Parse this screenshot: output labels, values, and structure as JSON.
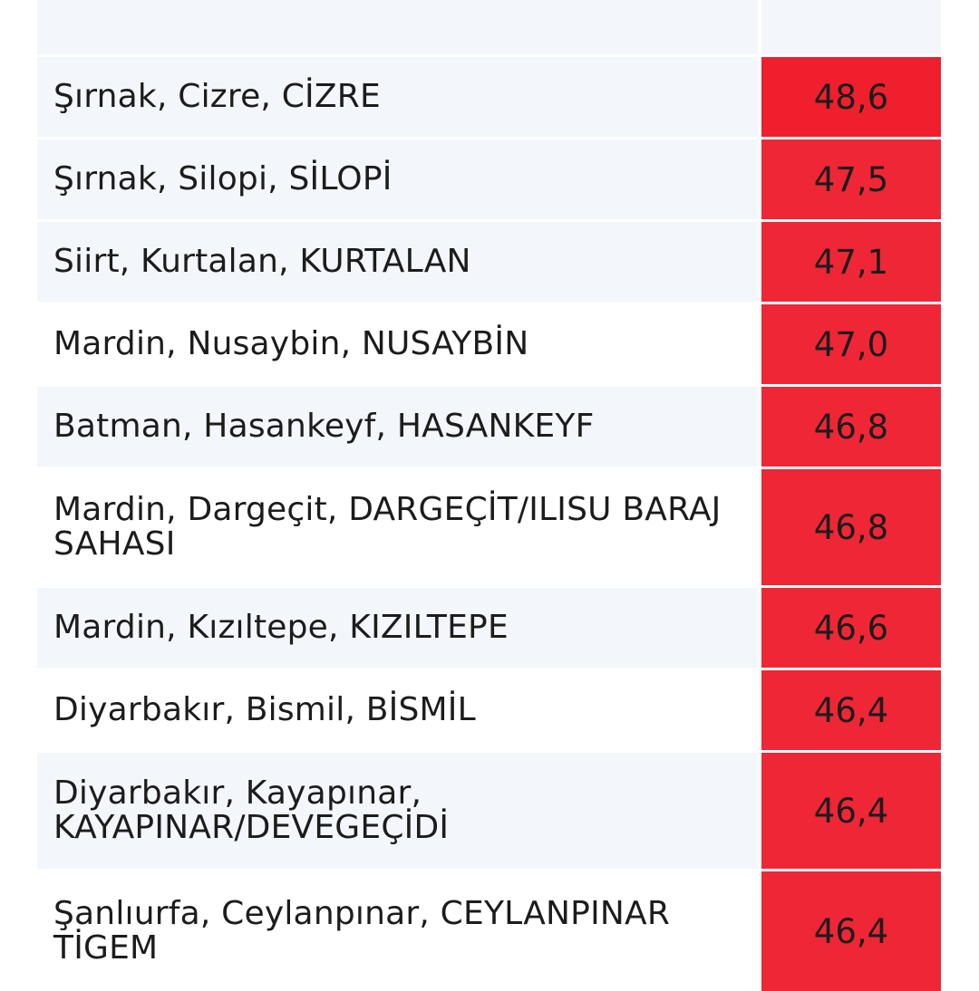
{
  "table": {
    "rows": [
      {
        "location": "Şırnak, Cizre, CİZRE",
        "value": "48,6"
      },
      {
        "location": "Şırnak, Silopi, SİLOPİ",
        "value": "47,5"
      },
      {
        "location": "Siirt, Kurtalan, KURTALAN",
        "value": "47,1"
      },
      {
        "location": "Mardin, Nusaybin, NUSAYBİN",
        "value": "47,0"
      },
      {
        "location": "Batman, Hasankeyf, HASANKEYF",
        "value": "46,8"
      },
      {
        "location": "Mardin, Dargeçit, DARGEÇİT/ILISU BARAJ SAHASI",
        "value": "46,8"
      },
      {
        "location": "Mardin, Kızıltepe, KIZILTEPE",
        "value": "46,6"
      },
      {
        "location": "Diyarbakır, Bismil, BİSMİL",
        "value": "46,4"
      },
      {
        "location": "Diyarbakır, Kayapınar, KAYAPINAR/DEVEGEÇİDİ",
        "value": "46,4"
      },
      {
        "location": "Şanlıurfa, Ceylanpınar, CEYLANPINAR TİGEM",
        "value": "46,4"
      }
    ]
  },
  "colors": {
    "value_cell_top": "#ef1f2e",
    "value_cell": "#ef2636",
    "row_alt_background": "#f3f6fa"
  }
}
